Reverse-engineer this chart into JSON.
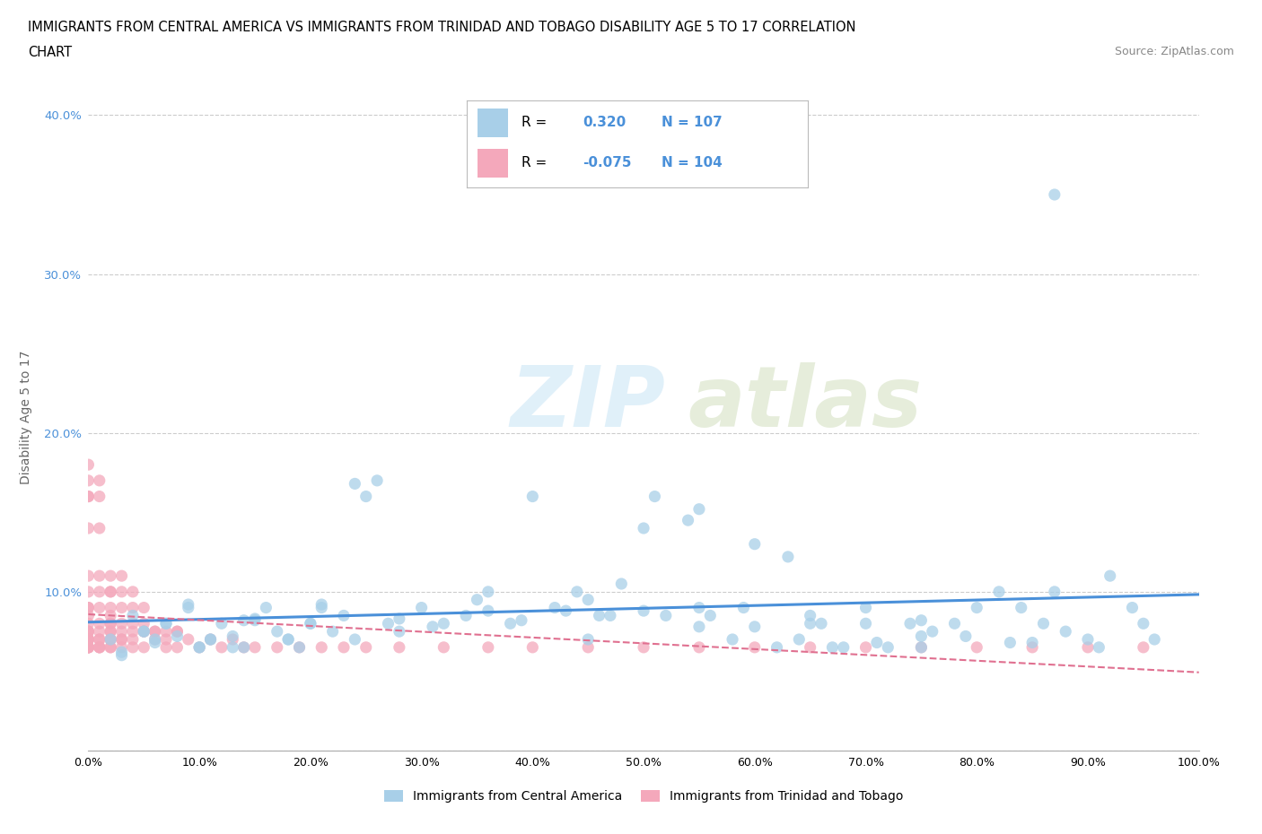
{
  "title_line1": "IMMIGRANTS FROM CENTRAL AMERICA VS IMMIGRANTS FROM TRINIDAD AND TOBAGO DISABILITY AGE 5 TO 17 CORRELATION",
  "title_line2": "CHART",
  "source_text": "Source: ZipAtlas.com",
  "ylabel": "Disability Age 5 to 17",
  "xlim": [
    0.0,
    1.0
  ],
  "ylim": [
    0.0,
    0.42
  ],
  "xticks": [
    0.0,
    0.1,
    0.2,
    0.3,
    0.4,
    0.5,
    0.6,
    0.7,
    0.8,
    0.9,
    1.0
  ],
  "xticklabels": [
    "0.0%",
    "10.0%",
    "20.0%",
    "30.0%",
    "40.0%",
    "50.0%",
    "60.0%",
    "70.0%",
    "80.0%",
    "90.0%",
    "100.0%"
  ],
  "ytick_positions": [
    0.0,
    0.1,
    0.2,
    0.3,
    0.4
  ],
  "ytick_labels": [
    "",
    "10.0%",
    "20.0%",
    "30.0%",
    "40.0%"
  ],
  "blue_R": 0.32,
  "blue_N": 107,
  "pink_R": -0.075,
  "pink_N": 104,
  "blue_color": "#a8cfe8",
  "pink_color": "#f4a8bb",
  "blue_line_color": "#4a90d9",
  "pink_line_color": "#e07090",
  "blue_text_color": "#4a90d9",
  "legend_label_blue": "Immigrants from Central America",
  "legend_label_pink": "Immigrants from Trinidad and Tobago",
  "watermark_zip": "ZIP",
  "watermark_atlas": "atlas",
  "blue_scatter_x": [
    0.02,
    0.03,
    0.04,
    0.05,
    0.06,
    0.07,
    0.08,
    0.09,
    0.1,
    0.11,
    0.12,
    0.13,
    0.14,
    0.15,
    0.16,
    0.17,
    0.18,
    0.19,
    0.2,
    0.21,
    0.22,
    0.23,
    0.24,
    0.25,
    0.26,
    0.28,
    0.3,
    0.32,
    0.34,
    0.36,
    0.38,
    0.4,
    0.42,
    0.44,
    0.46,
    0.48,
    0.5,
    0.52,
    0.54,
    0.56,
    0.58,
    0.6,
    0.62,
    0.64,
    0.66,
    0.68,
    0.7,
    0.72,
    0.74,
    0.76,
    0.78,
    0.8,
    0.82,
    0.84,
    0.86,
    0.88,
    0.9,
    0.92,
    0.94,
    0.96,
    0.03,
    0.05,
    0.07,
    0.09,
    0.11,
    0.13,
    0.15,
    0.18,
    0.21,
    0.24,
    0.27,
    0.31,
    0.35,
    0.39,
    0.43,
    0.47,
    0.51,
    0.55,
    0.59,
    0.63,
    0.67,
    0.71,
    0.75,
    0.79,
    0.83,
    0.87,
    0.91,
    0.95,
    0.06,
    0.1,
    0.14,
    0.2,
    0.28,
    0.36,
    0.45,
    0.55,
    0.65,
    0.75,
    0.85,
    0.87,
    0.45,
    0.5,
    0.55,
    0.6,
    0.65,
    0.7,
    0.75
  ],
  "blue_scatter_y": [
    0.07,
    0.062,
    0.085,
    0.075,
    0.068,
    0.08,
    0.072,
    0.09,
    0.065,
    0.07,
    0.08,
    0.072,
    0.065,
    0.082,
    0.09,
    0.075,
    0.07,
    0.065,
    0.08,
    0.09,
    0.075,
    0.085,
    0.07,
    0.16,
    0.17,
    0.075,
    0.09,
    0.08,
    0.085,
    0.1,
    0.08,
    0.16,
    0.09,
    0.1,
    0.085,
    0.105,
    0.14,
    0.085,
    0.145,
    0.085,
    0.07,
    0.13,
    0.065,
    0.07,
    0.08,
    0.065,
    0.08,
    0.065,
    0.08,
    0.075,
    0.08,
    0.09,
    0.1,
    0.09,
    0.08,
    0.075,
    0.07,
    0.11,
    0.09,
    0.07,
    0.06,
    0.075,
    0.08,
    0.092,
    0.07,
    0.065,
    0.083,
    0.07,
    0.092,
    0.168,
    0.08,
    0.078,
    0.095,
    0.082,
    0.088,
    0.085,
    0.16,
    0.152,
    0.09,
    0.122,
    0.065,
    0.068,
    0.065,
    0.072,
    0.068,
    0.35,
    0.065,
    0.08,
    0.07,
    0.065,
    0.082,
    0.08,
    0.083,
    0.088,
    0.07,
    0.078,
    0.08,
    0.072,
    0.068,
    0.1,
    0.095,
    0.088,
    0.09,
    0.078,
    0.085,
    0.09,
    0.082
  ],
  "pink_scatter_x": [
    0.0,
    0.0,
    0.0,
    0.0,
    0.0,
    0.0,
    0.0,
    0.0,
    0.0,
    0.0,
    0.0,
    0.0,
    0.0,
    0.0,
    0.0,
    0.0,
    0.0,
    0.0,
    0.0,
    0.0,
    0.01,
    0.01,
    0.01,
    0.01,
    0.01,
    0.01,
    0.01,
    0.01,
    0.01,
    0.01,
    0.02,
    0.02,
    0.02,
    0.02,
    0.02,
    0.02,
    0.02,
    0.02,
    0.02,
    0.02,
    0.03,
    0.03,
    0.03,
    0.03,
    0.03,
    0.04,
    0.04,
    0.04,
    0.04,
    0.05,
    0.05,
    0.05,
    0.06,
    0.06,
    0.07,
    0.07,
    0.08,
    0.08,
    0.09,
    0.1,
    0.11,
    0.12,
    0.13,
    0.14,
    0.15,
    0.17,
    0.19,
    0.21,
    0.23,
    0.25,
    0.28,
    0.32,
    0.36,
    0.4,
    0.45,
    0.5,
    0.55,
    0.6,
    0.65,
    0.7,
    0.75,
    0.8,
    0.85,
    0.9,
    0.95,
    0.0,
    0.01,
    0.02,
    0.03,
    0.04,
    0.05,
    0.06,
    0.07,
    0.08,
    0.0,
    0.01,
    0.02,
    0.03,
    0.04,
    0.05,
    0.0,
    0.01,
    0.02,
    0.03
  ],
  "pink_scatter_y": [
    0.065,
    0.07,
    0.075,
    0.08,
    0.085,
    0.09,
    0.1,
    0.065,
    0.07,
    0.16,
    0.17,
    0.18,
    0.065,
    0.07,
    0.075,
    0.14,
    0.16,
    0.065,
    0.07,
    0.065,
    0.065,
    0.07,
    0.08,
    0.1,
    0.14,
    0.16,
    0.17,
    0.065,
    0.07,
    0.065,
    0.07,
    0.075,
    0.08,
    0.085,
    0.1,
    0.065,
    0.07,
    0.08,
    0.1,
    0.065,
    0.07,
    0.08,
    0.1,
    0.065,
    0.07,
    0.08,
    0.1,
    0.065,
    0.07,
    0.075,
    0.08,
    0.065,
    0.07,
    0.075,
    0.07,
    0.065,
    0.075,
    0.065,
    0.07,
    0.065,
    0.07,
    0.065,
    0.07,
    0.065,
    0.065,
    0.065,
    0.065,
    0.065,
    0.065,
    0.065,
    0.065,
    0.065,
    0.065,
    0.065,
    0.065,
    0.065,
    0.065,
    0.065,
    0.065,
    0.065,
    0.065,
    0.065,
    0.065,
    0.065,
    0.065,
    0.075,
    0.075,
    0.075,
    0.075,
    0.075,
    0.075,
    0.075,
    0.075,
    0.075,
    0.09,
    0.09,
    0.09,
    0.09,
    0.09,
    0.09,
    0.11,
    0.11,
    0.11,
    0.11
  ]
}
